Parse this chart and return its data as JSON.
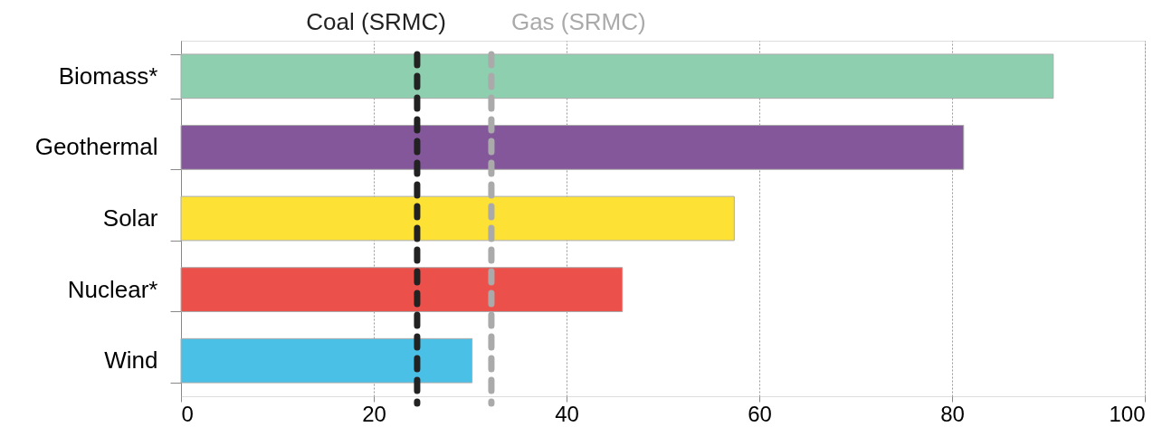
{
  "chart_data": {
    "type": "bar",
    "orientation": "horizontal",
    "categories": [
      "Biomass*",
      "Geothermal",
      "Solar",
      "Nuclear*",
      "Wind"
    ],
    "values": [
      90.5,
      81.2,
      57.4,
      45.8,
      30.2
    ],
    "colors": [
      "#8ecfb0",
      "#835799",
      "#fde135",
      "#ec504a",
      "#4bc0e6"
    ],
    "xlim": [
      0,
      100
    ],
    "xticks": [
      0,
      20,
      40,
      60,
      80,
      100
    ],
    "grid": "x",
    "ref_lines": [
      {
        "axis": "x",
        "value": 24.5,
        "label": "Coal (SRMC)",
        "color": "#222222",
        "line_style": "dashed"
      },
      {
        "axis": "x",
        "value": 32.2,
        "label": "Gas (SRMC)",
        "color": "#aaaaaa",
        "line_style": "dashed"
      }
    ]
  }
}
